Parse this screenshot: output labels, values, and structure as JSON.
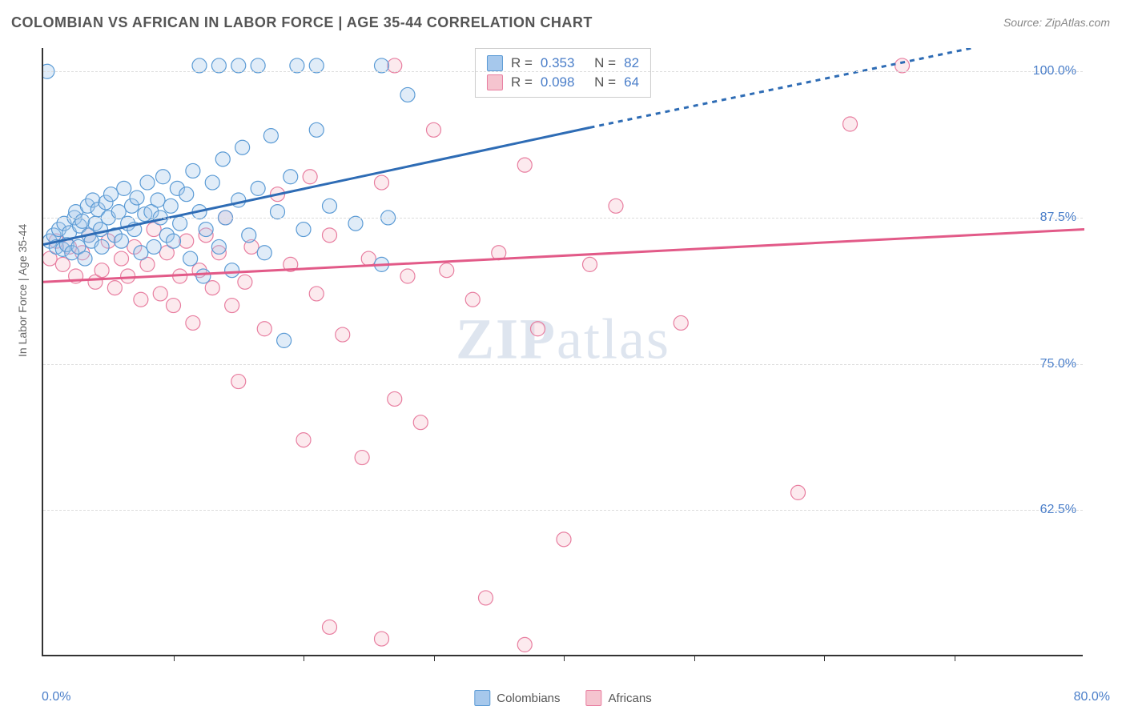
{
  "title": "COLOMBIAN VS AFRICAN IN LABOR FORCE | AGE 35-44 CORRELATION CHART",
  "source": "Source: ZipAtlas.com",
  "ylabel": "In Labor Force | Age 35-44",
  "watermark_a": "ZIP",
  "watermark_b": "atlas",
  "chart": {
    "type": "scatter",
    "xlim": [
      0,
      80
    ],
    "ylim": [
      50,
      102
    ],
    "x_ticks": [
      10,
      20,
      30,
      40,
      50,
      60,
      70
    ],
    "y_ticks": [
      62.5,
      75.0,
      87.5,
      100.0
    ],
    "y_tick_labels": [
      "62.5%",
      "75.0%",
      "87.5%",
      "100.0%"
    ],
    "x_min_label": "0.0%",
    "x_max_label": "80.0%",
    "background_color": "#ffffff",
    "grid_color": "#dddddd",
    "axis_color": "#333333",
    "label_fontsize": 14,
    "tick_fontsize": 16,
    "tick_color": "#4a7ec9",
    "marker_radius": 9,
    "marker_fill_opacity": 0.35,
    "marker_stroke_width": 1.2,
    "line_width": 3
  },
  "series": {
    "colombians": {
      "label": "Colombians",
      "color_fill": "#a6c8ec",
      "color_stroke": "#5b9bd5",
      "line_color": "#2e6cb5",
      "trend": {
        "x1": 0,
        "y1": 85.2,
        "x2": 42,
        "y2": 95.2,
        "x3": 80,
        "y3": 104
      },
      "R": "0.353",
      "N": "82",
      "points": [
        [
          0.5,
          85.5
        ],
        [
          0.8,
          86.0
        ],
        [
          1.0,
          85.0
        ],
        [
          1.2,
          86.5
        ],
        [
          1.5,
          84.8
        ],
        [
          1.6,
          87.0
        ],
        [
          1.8,
          85.2
        ],
        [
          2.0,
          86.2
        ],
        [
          2.2,
          84.5
        ],
        [
          2.4,
          87.5
        ],
        [
          2.5,
          88.0
        ],
        [
          2.7,
          85.0
        ],
        [
          2.8,
          86.8
        ],
        [
          3.0,
          87.2
        ],
        [
          3.2,
          84.0
        ],
        [
          3.4,
          88.5
        ],
        [
          3.5,
          86.0
        ],
        [
          3.7,
          85.5
        ],
        [
          3.8,
          89.0
        ],
        [
          4.0,
          87.0
        ],
        [
          4.2,
          88.2
        ],
        [
          4.4,
          86.5
        ],
        [
          4.5,
          85.0
        ],
        [
          4.8,
          88.8
        ],
        [
          5.0,
          87.5
        ],
        [
          5.2,
          89.5
        ],
        [
          5.5,
          86.0
        ],
        [
          5.8,
          88.0
        ],
        [
          6.0,
          85.5
        ],
        [
          6.2,
          90.0
        ],
        [
          6.5,
          87.0
        ],
        [
          6.8,
          88.5
        ],
        [
          7.0,
          86.5
        ],
        [
          7.2,
          89.2
        ],
        [
          7.5,
          84.5
        ],
        [
          7.8,
          87.8
        ],
        [
          8.0,
          90.5
        ],
        [
          8.3,
          88.0
        ],
        [
          8.5,
          85.0
        ],
        [
          8.8,
          89.0
        ],
        [
          9.0,
          87.5
        ],
        [
          9.2,
          91.0
        ],
        [
          9.5,
          86.0
        ],
        [
          9.8,
          88.5
        ],
        [
          10.0,
          85.5
        ],
        [
          10.3,
          90.0
        ],
        [
          10.5,
          87.0
        ],
        [
          11.0,
          89.5
        ],
        [
          11.3,
          84.0
        ],
        [
          11.5,
          91.5
        ],
        [
          12.0,
          88.0
        ],
        [
          12.3,
          82.5
        ],
        [
          12.5,
          86.5
        ],
        [
          13.0,
          90.5
        ],
        [
          13.5,
          85.0
        ],
        [
          13.8,
          92.5
        ],
        [
          14.0,
          87.5
        ],
        [
          14.5,
          83.0
        ],
        [
          15.0,
          89.0
        ],
        [
          15.3,
          93.5
        ],
        [
          15.8,
          86.0
        ],
        [
          16.5,
          90.0
        ],
        [
          17.0,
          84.5
        ],
        [
          17.5,
          94.5
        ],
        [
          18.0,
          88.0
        ],
        [
          18.5,
          77.0
        ],
        [
          19.0,
          91.0
        ],
        [
          20.0,
          86.5
        ],
        [
          21.0,
          95.0
        ],
        [
          22.0,
          88.5
        ],
        [
          24.0,
          87.0
        ],
        [
          26.0,
          83.5
        ],
        [
          28.0,
          98.0
        ],
        [
          0.3,
          100.0
        ],
        [
          12.0,
          100.5
        ],
        [
          13.5,
          100.5
        ],
        [
          15.0,
          100.5
        ],
        [
          16.5,
          100.5
        ],
        [
          19.5,
          100.5
        ],
        [
          21.0,
          100.5
        ],
        [
          26.0,
          100.5
        ],
        [
          26.5,
          87.5
        ]
      ]
    },
    "africans": {
      "label": "Africans",
      "color_fill": "#f5c4cf",
      "color_stroke": "#e87ea0",
      "line_color": "#e25a88",
      "trend": {
        "x1": 0,
        "y1": 82.0,
        "x2": 80,
        "y2": 86.5
      },
      "R": "0.098",
      "N": "64",
      "points": [
        [
          0.5,
          84.0
        ],
        [
          1.0,
          85.5
        ],
        [
          1.5,
          83.5
        ],
        [
          2.0,
          85.0
        ],
        [
          2.5,
          82.5
        ],
        [
          3.0,
          84.5
        ],
        [
          3.5,
          86.0
        ],
        [
          4.0,
          82.0
        ],
        [
          4.5,
          83.0
        ],
        [
          5.0,
          85.5
        ],
        [
          5.5,
          81.5
        ],
        [
          6.0,
          84.0
        ],
        [
          6.5,
          82.5
        ],
        [
          7.0,
          85.0
        ],
        [
          7.5,
          80.5
        ],
        [
          8.0,
          83.5
        ],
        [
          8.5,
          86.5
        ],
        [
          9.0,
          81.0
        ],
        [
          9.5,
          84.5
        ],
        [
          10.0,
          80.0
        ],
        [
          10.5,
          82.5
        ],
        [
          11.0,
          85.5
        ],
        [
          11.5,
          78.5
        ],
        [
          12.0,
          83.0
        ],
        [
          12.5,
          86.0
        ],
        [
          13.0,
          81.5
        ],
        [
          13.5,
          84.5
        ],
        [
          14.0,
          87.5
        ],
        [
          14.5,
          80.0
        ],
        [
          15.0,
          73.5
        ],
        [
          15.5,
          82.0
        ],
        [
          16.0,
          85.0
        ],
        [
          17.0,
          78.0
        ],
        [
          18.0,
          89.5
        ],
        [
          19.0,
          83.5
        ],
        [
          20.0,
          68.5
        ],
        [
          20.5,
          91.0
        ],
        [
          21.0,
          81.0
        ],
        [
          22.0,
          86.0
        ],
        [
          23.0,
          77.5
        ],
        [
          24.5,
          67.0
        ],
        [
          25.0,
          84.0
        ],
        [
          26.0,
          90.5
        ],
        [
          27.0,
          72.0
        ],
        [
          28.0,
          82.5
        ],
        [
          29.0,
          70.0
        ],
        [
          30.0,
          95.0
        ],
        [
          31.0,
          83.0
        ],
        [
          33.0,
          80.5
        ],
        [
          34.0,
          55.0
        ],
        [
          35.0,
          84.5
        ],
        [
          37.0,
          92.0
        ],
        [
          38.0,
          78.0
        ],
        [
          40.0,
          60.0
        ],
        [
          42.0,
          83.5
        ],
        [
          44.0,
          88.5
        ],
        [
          49.0,
          78.5
        ],
        [
          58.0,
          64.0
        ],
        [
          62.0,
          95.5
        ],
        [
          66.0,
          100.5
        ],
        [
          22.0,
          52.5
        ],
        [
          26.0,
          51.5
        ],
        [
          37.0,
          51.0
        ],
        [
          27.0,
          100.5
        ]
      ]
    }
  },
  "legend": {
    "item1": "Colombians",
    "item2": "Africans"
  }
}
